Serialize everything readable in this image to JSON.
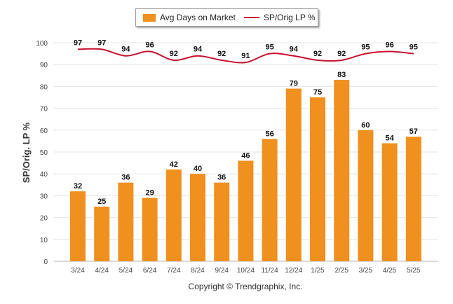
{
  "legend": {
    "bar_label": "Avg Days on Market",
    "line_label": "SP/Orig LP %"
  },
  "copyright": "Copyright © Trendgraphix, Inc.",
  "chart_data": {
    "type": "bar",
    "ylabel": "SP/Orig. LP %",
    "xlabel": "",
    "ylim": [
      0,
      100
    ],
    "yticks": [
      0,
      10,
      20,
      30,
      40,
      50,
      60,
      70,
      80,
      90,
      100
    ],
    "grid": true,
    "legend_position": "top",
    "categories": [
      "3/24",
      "4/24",
      "5/24",
      "6/24",
      "7/24",
      "8/24",
      "9/24",
      "10/24",
      "11/24",
      "12/24",
      "1/25",
      "2/25",
      "3/25",
      "4/25",
      "5/25"
    ],
    "series": [
      {
        "name": "Avg Days on Market",
        "type": "bar",
        "color": "#F0901E",
        "values": [
          32,
          25,
          36,
          29,
          42,
          40,
          36,
          46,
          56,
          79,
          75,
          83,
          60,
          54,
          57
        ]
      },
      {
        "name": "SP/Orig LP %",
        "type": "line",
        "color": "#C8102E",
        "values": [
          97,
          97,
          94,
          96,
          92,
          94,
          92,
          91,
          95,
          94,
          92,
          92,
          95,
          96,
          95
        ]
      }
    ]
  }
}
